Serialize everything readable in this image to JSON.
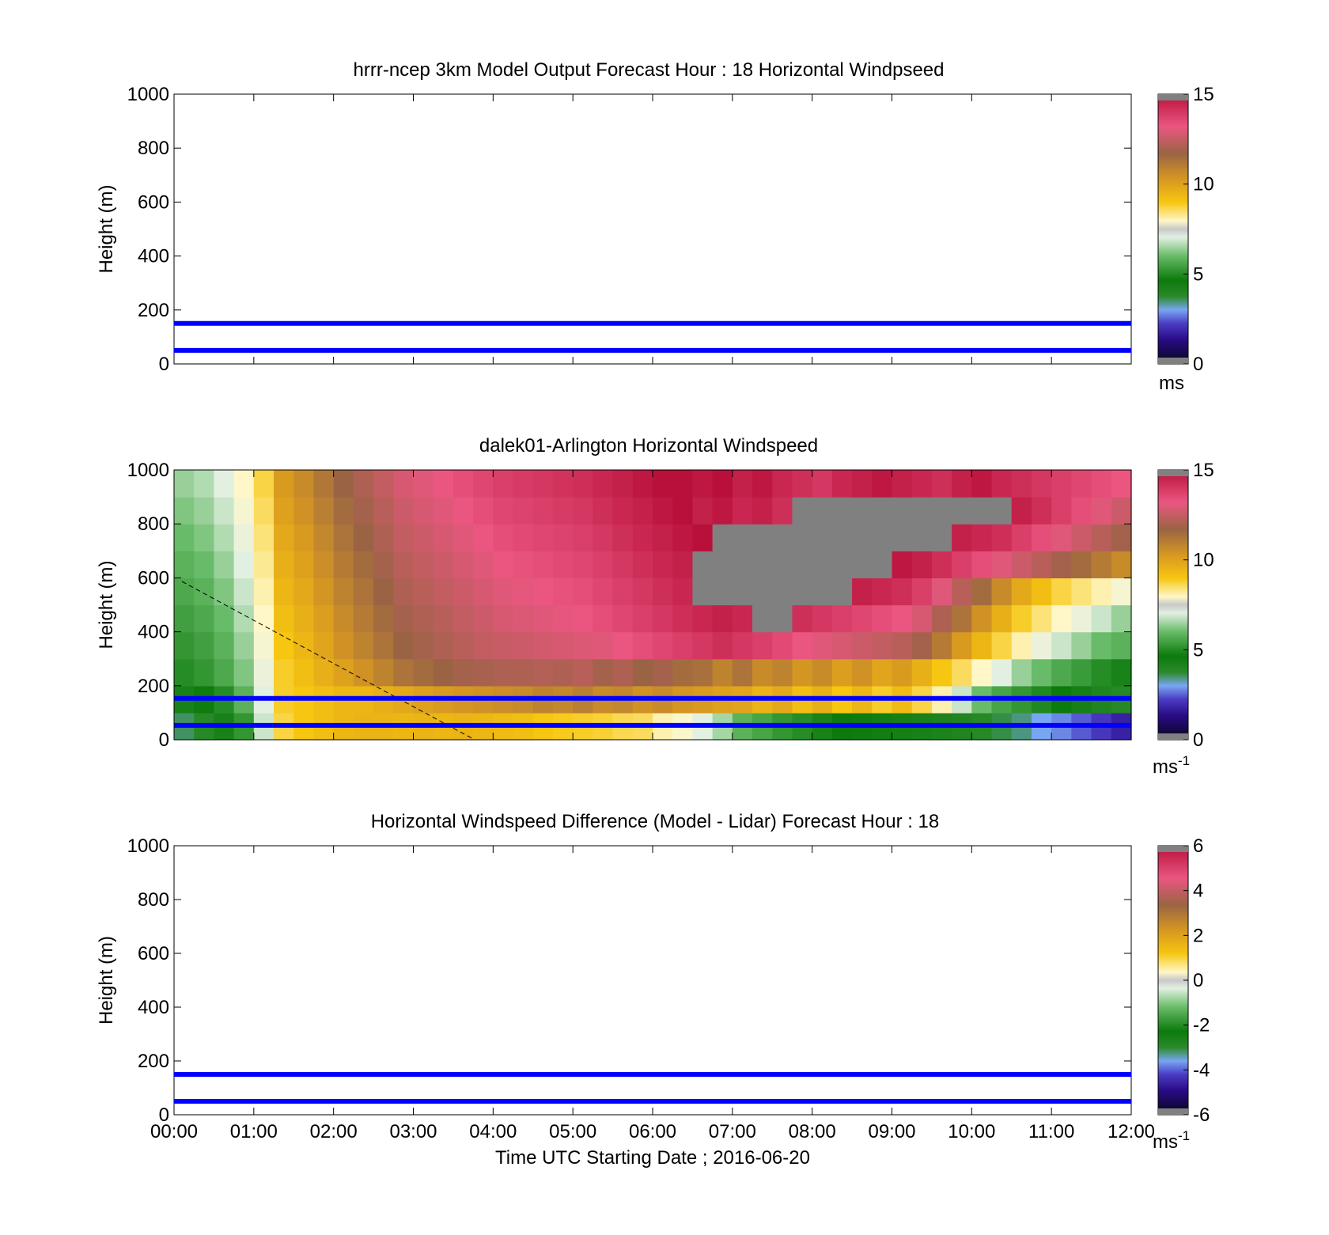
{
  "time_axis_label": "Time UTC  Starting Date ; 2016-06-20",
  "y_axis_label": "Height (m)",
  "y_ticks": [
    "0",
    "200",
    "400",
    "600",
    "800",
    "1000"
  ],
  "x_ticks": [
    "00:00",
    "01:00",
    "02:00",
    "03:00",
    "04:00",
    "05:00",
    "06:00",
    "07:00",
    "08:00",
    "09:00",
    "10:00",
    "11:00",
    "12:00"
  ],
  "panels": [
    {
      "title": "hrrr-ncep 3km Model Output   Forecast Hour : 18 Horizontal Windpseed",
      "colorbar_ticks": [
        "0",
        "5",
        "10",
        "15"
      ],
      "unit": "ms",
      "unit_sup": ""
    },
    {
      "title": "dalek01-Arlington  Horizontal Windspeed",
      "colorbar_ticks": [
        "0",
        "5",
        "10",
        "15"
      ],
      "unit": "ms",
      "unit_sup": "-1"
    },
    {
      "title": "Horizontal Windspeed Difference (Model - Lidar) Forecast Hour : 18",
      "colorbar_ticks": [
        "-6",
        "-4",
        "-2",
        "0",
        "2",
        "4",
        "6"
      ],
      "unit": "ms",
      "unit_sup": "-1"
    }
  ],
  "colors": {
    "reference_line": "#0000ff",
    "missing": "#808080",
    "windspeed_scale": [
      "#0a0a2a",
      "#2e0f8a",
      "#5030c0",
      "#6f9ef0",
      "#0c7a0c",
      "#1fa01f",
      "#7cc27c",
      "#d8ecd8",
      "#f7f3d0",
      "#f2c418",
      "#e0a018",
      "#b07830",
      "#9a6444",
      "#e65078",
      "#f06090",
      "#c0103a"
    ]
  },
  "chart_data": [
    {
      "type": "heatmap",
      "title": "hrrr-ncep 3km Model Output   Forecast Hour : 18 Horizontal Windpseed",
      "xlabel": "",
      "ylabel": "Height (m)",
      "x_range": [
        "00:00",
        "12:00"
      ],
      "ylim": [
        0,
        1000
      ],
      "colorbar_range": [
        0,
        15
      ],
      "colorbar_unit": "ms",
      "reference_lines_height_m": [
        50,
        150
      ],
      "values": []
    },
    {
      "type": "heatmap",
      "title": "dalek01-Arlington  Horizontal Windspeed",
      "xlabel": "",
      "ylabel": "Height (m)",
      "x_range": [
        "00:00",
        "12:00"
      ],
      "ylim": [
        0,
        1000
      ],
      "colorbar_range": [
        0,
        15
      ],
      "colorbar_unit": "ms-1",
      "reference_lines_height_m": [
        50,
        150
      ],
      "x_hours": [
        0.125,
        0.375,
        0.625,
        0.875,
        1.125,
        1.375,
        1.625,
        1.875,
        2.125,
        2.375,
        2.625,
        2.875,
        3.125,
        3.375,
        3.625,
        3.875,
        4.125,
        4.375,
        4.625,
        4.875,
        5.125,
        5.375,
        5.625,
        5.875,
        6.125,
        6.375,
        6.625,
        6.875,
        7.125,
        7.375,
        7.625,
        7.875,
        8.125,
        8.375,
        8.625,
        8.875,
        9.125,
        9.375,
        9.625,
        9.875,
        10.125,
        10.375,
        10.625,
        10.875,
        11.125,
        11.375,
        11.625,
        11.875
      ],
      "heights_m": [
        50,
        150,
        250,
        350,
        450,
        550,
        650,
        750,
        850,
        950
      ],
      "values": [
        [
          3.5,
          3.8,
          4.2,
          5.2,
          6.8,
          8.6,
          9.0,
          9.2,
          9.4,
          9.5,
          9.5,
          9.4,
          9.5,
          9.4,
          9.5,
          9.4,
          9.3,
          9.2,
          9.0,
          8.9,
          8.8,
          8.7,
          8.5,
          8.4,
          7.8,
          7.5,
          7.0,
          6.5,
          5.8,
          5.5,
          5.2,
          5.0,
          4.8,
          4.6,
          4.5,
          4.4,
          4.3,
          4.2,
          4.1,
          4.0,
          3.8,
          3.6,
          3.4,
          3.0,
          2.8,
          2.5,
          2.2,
          1.8
        ],
        [
          4.2,
          4.5,
          5.0,
          5.8,
          7.0,
          8.8,
          9.0,
          9.2,
          9.4,
          9.4,
          9.6,
          9.8,
          10.0,
          10.2,
          10.3,
          10.4,
          10.5,
          10.6,
          10.8,
          10.7,
          10.9,
          10.6,
          10.7,
          10.4,
          10.6,
          10.3,
          10.2,
          10.0,
          9.9,
          9.5,
          9.8,
          9.2,
          9.6,
          9.0,
          9.4,
          8.8,
          9.3,
          8.6,
          7.8,
          6.8,
          6.0,
          5.5,
          5.2,
          4.9,
          4.6,
          4.3,
          4.0,
          3.8
        ],
        [
          5.0,
          5.2,
          5.6,
          6.2,
          7.2,
          8.8,
          9.2,
          9.6,
          10.0,
          10.4,
          10.8,
          11.2,
          11.4,
          11.6,
          11.8,
          11.9,
          12.0,
          12.0,
          12.1,
          12.0,
          12.2,
          11.8,
          12.0,
          11.6,
          11.8,
          11.4,
          11.3,
          10.8,
          11.2,
          10.6,
          10.8,
          10.3,
          10.6,
          10.1,
          10.4,
          9.9,
          10.2,
          9.6,
          9.0,
          8.4,
          7.6,
          7.0,
          6.4,
          6.0,
          5.6,
          5.3,
          5.0,
          4.8
        ],
        [
          5.2,
          5.4,
          5.8,
          6.4,
          7.4,
          9.0,
          9.4,
          9.9,
          10.4,
          10.8,
          11.2,
          11.6,
          11.8,
          12.0,
          12.2,
          12.4,
          12.5,
          12.6,
          12.7,
          12.8,
          12.9,
          13.0,
          13.2,
          13.4,
          13.6,
          13.8,
          14.0,
          14.2,
          14.0,
          13.8,
          13.5,
          13.2,
          13.0,
          12.8,
          12.6,
          12.4,
          12.2,
          11.8,
          11.0,
          10.2,
          9.4,
          8.6,
          7.8,
          7.2,
          6.8,
          6.4,
          6.0,
          5.8
        ],
        [
          5.4,
          5.6,
          6.0,
          6.6,
          7.6,
          9.2,
          9.6,
          10.1,
          10.6,
          11.0,
          11.4,
          11.8,
          12.0,
          12.2,
          12.4,
          12.6,
          12.8,
          12.9,
          13.0,
          13.1,
          13.2,
          13.4,
          13.6,
          13.8,
          14.0,
          14.2,
          14.4,
          14.6,
          14.4,
          15.5,
          15.5,
          14.2,
          14.0,
          13.8,
          13.6,
          13.4,
          13.2,
          12.8,
          12.0,
          11.2,
          10.4,
          9.6,
          8.8,
          8.2,
          7.6,
          7.2,
          6.8,
          6.4
        ],
        [
          5.6,
          5.8,
          6.2,
          6.8,
          7.8,
          9.4,
          9.8,
          10.3,
          10.8,
          11.2,
          11.6,
          12.0,
          12.2,
          12.4,
          12.6,
          12.8,
          13.0,
          13.1,
          13.2,
          13.3,
          13.4,
          13.6,
          13.8,
          14.0,
          14.2,
          14.4,
          15.5,
          15.5,
          15.5,
          15.5,
          15.5,
          15.5,
          15.5,
          15.5,
          14.6,
          14.4,
          14.2,
          13.8,
          13.0,
          12.2,
          11.4,
          10.6,
          9.8,
          9.2,
          8.6,
          8.2,
          7.8,
          7.4
        ],
        [
          5.8,
          6.0,
          6.4,
          7.0,
          8.0,
          9.6,
          10.0,
          10.5,
          11.0,
          11.4,
          11.8,
          12.2,
          12.4,
          12.6,
          12.8,
          13.0,
          13.2,
          13.3,
          13.4,
          13.5,
          13.6,
          13.8,
          14.0,
          14.2,
          14.4,
          14.6,
          15.5,
          15.5,
          15.5,
          15.5,
          15.5,
          15.5,
          15.5,
          15.5,
          15.5,
          15.5,
          14.8,
          14.6,
          14.2,
          13.8,
          13.4,
          13.0,
          12.6,
          12.2,
          11.8,
          11.4,
          11.0,
          10.6
        ],
        [
          6.0,
          6.2,
          6.6,
          7.2,
          8.2,
          9.8,
          10.2,
          10.7,
          11.2,
          11.6,
          12.0,
          12.4,
          12.6,
          12.8,
          13.0,
          13.2,
          13.4,
          13.5,
          13.6,
          13.7,
          13.8,
          14.0,
          14.2,
          14.4,
          14.6,
          14.8,
          15.0,
          15.5,
          15.5,
          15.5,
          15.5,
          15.5,
          15.5,
          15.5,
          15.5,
          15.5,
          15.5,
          15.5,
          15.5,
          14.6,
          14.4,
          14.2,
          13.8,
          13.4,
          13.0,
          12.6,
          12.2,
          11.8
        ],
        [
          6.2,
          6.4,
          6.8,
          7.4,
          8.4,
          10.0,
          10.4,
          10.9,
          11.4,
          11.8,
          12.2,
          12.6,
          12.8,
          13.0,
          13.2,
          13.4,
          13.6,
          13.7,
          13.8,
          13.9,
          14.0,
          14.2,
          14.4,
          14.6,
          14.8,
          15.0,
          14.6,
          14.8,
          14.4,
          14.6,
          14.2,
          15.5,
          15.5,
          15.5,
          15.5,
          15.5,
          15.5,
          15.5,
          15.5,
          15.5,
          15.5,
          15.5,
          14.6,
          14.2,
          13.8,
          13.4,
          13.0,
          12.6
        ],
        [
          6.4,
          6.6,
          7.0,
          7.6,
          8.6,
          10.2,
          10.6,
          11.1,
          11.6,
          12.0,
          12.4,
          12.8,
          13.0,
          13.2,
          13.4,
          13.6,
          13.8,
          13.9,
          14.0,
          14.1,
          14.2,
          14.4,
          14.6,
          14.8,
          15.0,
          15.2,
          14.8,
          15.0,
          14.6,
          14.8,
          14.4,
          14.2,
          14.0,
          14.4,
          14.6,
          14.8,
          14.6,
          14.4,
          14.2,
          14.6,
          14.8,
          14.4,
          14.2,
          14.0,
          13.8,
          13.6,
          13.4,
          13.2
        ]
      ]
    },
    {
      "type": "heatmap",
      "title": "Horizontal Windspeed Difference (Model - Lidar) Forecast Hour : 18",
      "xlabel": "Time UTC  Starting Date ; 2016-06-20",
      "ylabel": "Height (m)",
      "x_range": [
        "00:00",
        "12:00"
      ],
      "ylim": [
        0,
        1000
      ],
      "colorbar_range": [
        -6,
        6
      ],
      "colorbar_unit": "ms-1",
      "reference_lines_height_m": [
        50,
        150
      ],
      "values": []
    }
  ]
}
